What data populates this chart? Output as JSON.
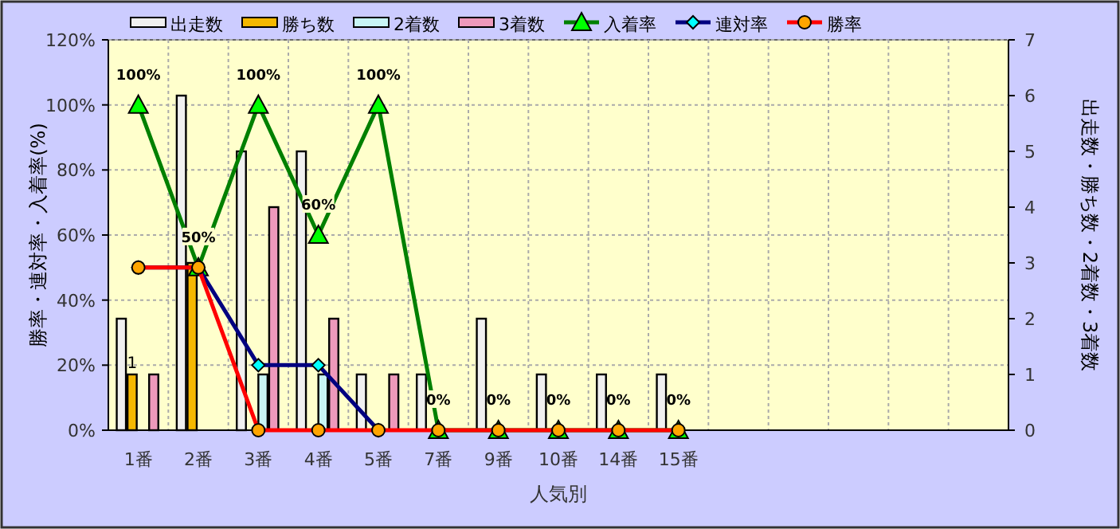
{
  "chart_data": {
    "type": "bar",
    "xlabel": "人気別",
    "ylabel": "勝率・連対率・入着率(%)",
    "y2label": "出走数・勝ち数・2着数・3着数",
    "categories": [
      "1番",
      "2番",
      "3番",
      "4番",
      "5番",
      "7番",
      "9番",
      "10番",
      "14番",
      "15番",
      null,
      null,
      null,
      null,
      null
    ],
    "ylim": [
      0,
      120
    ],
    "yticks": [
      {
        "value": 0,
        "label": "0%"
      },
      {
        "value": 20,
        "label": "20%"
      },
      {
        "value": 40,
        "label": "40%"
      },
      {
        "value": 60,
        "label": "60%"
      },
      {
        "value": 80,
        "label": "80%"
      },
      {
        "value": 100,
        "label": "100%"
      },
      {
        "value": 120,
        "label": "120%"
      }
    ],
    "y2lim": [
      0,
      7
    ],
    "y2ticks": [
      0,
      1,
      2,
      3,
      4,
      5,
      6,
      7
    ],
    "grid": true,
    "legend": "top",
    "series": [
      {
        "name": "出走数",
        "axis": "y2",
        "color": "#f0f0f0",
        "values": [
          2,
          6,
          5,
          5,
          1,
          1,
          2,
          1,
          1,
          1,
          null,
          null,
          null,
          null,
          null
        ]
      },
      {
        "name": "勝ち数",
        "axis": "y2",
        "color": "#f5b800",
        "values": [
          1,
          3,
          0,
          0,
          0,
          0,
          0,
          0,
          0,
          0,
          null,
          null,
          null,
          null,
          null
        ],
        "value_labels": [
          "1",
          null,
          null,
          null,
          null,
          null,
          null,
          null,
          null,
          null,
          null,
          null,
          null,
          null,
          null
        ]
      },
      {
        "name": "2着数",
        "axis": "y2",
        "color": "#c8f5f5",
        "values": [
          0,
          0,
          1,
          1,
          0,
          0,
          0,
          0,
          0,
          0,
          null,
          null,
          null,
          null,
          null
        ]
      },
      {
        "name": "3着数",
        "axis": "y2",
        "color": "#ee99bb",
        "values": [
          1,
          0,
          4,
          2,
          1,
          0,
          0,
          0,
          0,
          0,
          null,
          null,
          null,
          null,
          null
        ]
      },
      {
        "name": "入着率",
        "type": "line",
        "color": "#008000",
        "marker": "triangle",
        "values": [
          100,
          50,
          100,
          60,
          100,
          0,
          0,
          0,
          0,
          0,
          null,
          null,
          null,
          null,
          null
        ],
        "value_labels": [
          "100%",
          "50%",
          "100%",
          "60%",
          "100%",
          "0%",
          "0%",
          "0%",
          "0%",
          "0%",
          null,
          null,
          null,
          null,
          null
        ]
      },
      {
        "name": "連対率",
        "type": "line",
        "color": "#000080",
        "marker": "diamond",
        "values": [
          50,
          50,
          20,
          20,
          0,
          null,
          null,
          null,
          null,
          null,
          null,
          null,
          null,
          null,
          null
        ]
      },
      {
        "name": "勝率",
        "type": "line",
        "color": "#ff0000",
        "marker": "circle",
        "values": [
          50,
          50,
          0,
          0,
          0,
          0,
          0,
          0,
          0,
          0,
          null,
          null,
          null,
          null,
          null
        ]
      }
    ]
  }
}
